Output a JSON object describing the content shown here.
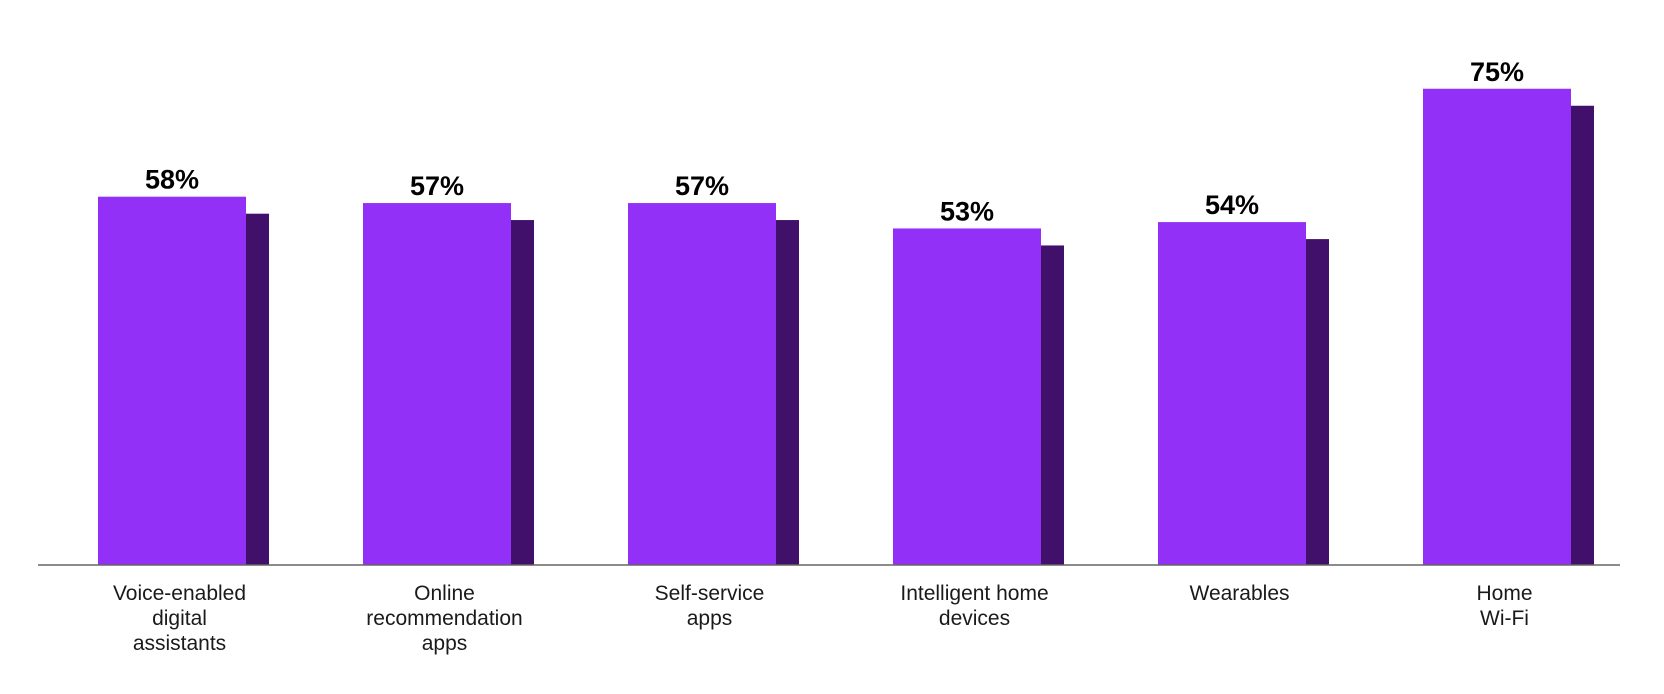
{
  "chart_data": {
    "type": "bar",
    "title": "",
    "xlabel": "",
    "ylabel": "",
    "ylim": [
      0,
      80
    ],
    "grid": false,
    "legend": "none",
    "categories": [
      [
        "Voice-enabled",
        "digital",
        "assistants"
      ],
      [
        "Online",
        "recommendation",
        "apps"
      ],
      [
        "Self-service",
        "apps"
      ],
      [
        "Intelligent home",
        "devices"
      ],
      [
        "Wearables"
      ],
      [
        "Home",
        "Wi-Fi"
      ]
    ],
    "values": [
      58,
      57,
      57,
      53,
      54,
      75
    ],
    "value_labels": [
      "58%",
      "57%",
      "57%",
      "53%",
      "54%",
      "75%"
    ]
  },
  "colors": {
    "bar_front": "#9330f8",
    "bar_shadow": "#40106b",
    "axis": "#666666"
  }
}
